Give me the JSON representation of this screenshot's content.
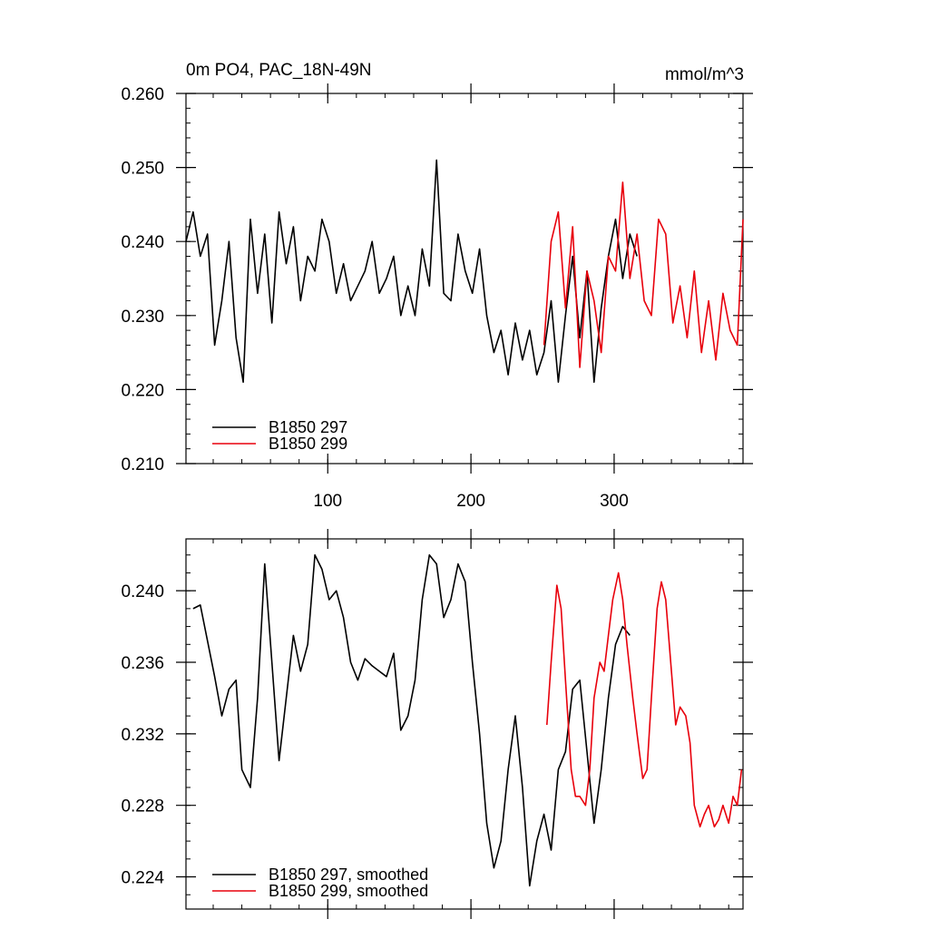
{
  "header": {
    "title": "0m PO4, PAC_18N-49N",
    "units": "mmol/m^3"
  },
  "colors": {
    "series_297": "#000000",
    "series_299": "#e8000b"
  },
  "chart_data": [
    {
      "type": "line",
      "title": "0m PO4, PAC_18N-49N",
      "units": "mmol/m^3",
      "xlim": [
        1,
        390
      ],
      "ylim": [
        0.21,
        0.26
      ],
      "xticks": [
        100,
        200,
        300
      ],
      "xtick_labels": [
        "100",
        "200",
        "300"
      ],
      "yticks": [
        0.21,
        0.22,
        0.23,
        0.24,
        0.25,
        0.26
      ],
      "ytick_labels": [
        "0.210",
        "0.220",
        "0.230",
        "0.240",
        "0.250",
        "0.260"
      ],
      "legend_position": "bottom-left",
      "series": [
        {
          "name": "B1850 297",
          "x": [
            1,
            6,
            11,
            16,
            21,
            26,
            31,
            36,
            41,
            46,
            51,
            56,
            61,
            66,
            71,
            76,
            81,
            86,
            91,
            96,
            101,
            106,
            111,
            116,
            121,
            126,
            131,
            136,
            141,
            146,
            151,
            156,
            161,
            166,
            171,
            176,
            181,
            186,
            191,
            196,
            201,
            206,
            211,
            216,
            221,
            226,
            231,
            236,
            241,
            246,
            251,
            256,
            261,
            266,
            271,
            276,
            281,
            286,
            291,
            296,
            301,
            306,
            311,
            316
          ],
          "values": [
            0.24,
            0.244,
            0.238,
            0.241,
            0.226,
            0.232,
            0.24,
            0.227,
            0.221,
            0.243,
            0.233,
            0.241,
            0.229,
            0.244,
            0.237,
            0.242,
            0.232,
            0.238,
            0.236,
            0.243,
            0.24,
            0.233,
            0.237,
            0.232,
            0.234,
            0.236,
            0.24,
            0.233,
            0.235,
            0.238,
            0.23,
            0.234,
            0.23,
            0.239,
            0.234,
            0.251,
            0.233,
            0.232,
            0.241,
            0.236,
            0.233,
            0.239,
            0.23,
            0.225,
            0.228,
            0.222,
            0.229,
            0.224,
            0.228,
            0.222,
            0.225,
            0.232,
            0.221,
            0.23,
            0.238,
            0.227,
            0.236,
            0.221,
            0.231,
            0.238,
            0.243,
            0.235,
            0.241,
            0.238
          ]
        },
        {
          "name": "B1850 299",
          "x": [
            251,
            256,
            261,
            266,
            271,
            276,
            281,
            286,
            291,
            296,
            301,
            306,
            311,
            316,
            321,
            326,
            331,
            336,
            341,
            346,
            351,
            356,
            361,
            366,
            371,
            376,
            381,
            386,
            390
          ],
          "values": [
            0.226,
            0.24,
            0.244,
            0.231,
            0.242,
            0.223,
            0.236,
            0.232,
            0.225,
            0.238,
            0.236,
            0.248,
            0.235,
            0.241,
            0.232,
            0.23,
            0.243,
            0.241,
            0.229,
            0.234,
            0.227,
            0.236,
            0.225,
            0.232,
            0.224,
            0.233,
            0.228,
            0.226,
            0.243
          ]
        }
      ]
    },
    {
      "type": "line",
      "xlim": [
        1,
        390
      ],
      "ylim": [
        0.2222,
        0.2429
      ],
      "xticks": [
        100,
        200,
        300
      ],
      "yticks": [
        0.224,
        0.228,
        0.232,
        0.236,
        0.24
      ],
      "ytick_labels": [
        "0.224",
        "0.228",
        "0.232",
        "0.236",
        "0.240"
      ],
      "legend_position": "bottom-left",
      "series": [
        {
          "name": "B1850 297, smoothed",
          "x": [
            6,
            11,
            16,
            21,
            26,
            31,
            36,
            40,
            46,
            51,
            56,
            61,
            66,
            71,
            76,
            81,
            86,
            91,
            96,
            101,
            106,
            111,
            116,
            121,
            126,
            131,
            136,
            141,
            146,
            151,
            156,
            161,
            166,
            171,
            176,
            181,
            186,
            191,
            196,
            201,
            206,
            211,
            216,
            221,
            226,
            231,
            236,
            241,
            246,
            251,
            256,
            261,
            266,
            271,
            276,
            281,
            286,
            291,
            296,
            301,
            306,
            311
          ],
          "values": [
            0.239,
            0.2392,
            0.2372,
            0.2352,
            0.233,
            0.2345,
            0.235,
            0.23,
            0.229,
            0.234,
            0.2415,
            0.236,
            0.2305,
            0.234,
            0.2375,
            0.2355,
            0.237,
            0.242,
            0.2412,
            0.2395,
            0.24,
            0.2385,
            0.236,
            0.235,
            0.2362,
            0.2358,
            0.2355,
            0.2352,
            0.2365,
            0.2322,
            0.233,
            0.235,
            0.2395,
            0.242,
            0.2415,
            0.2385,
            0.2395,
            0.2415,
            0.2405,
            0.236,
            0.232,
            0.227,
            0.2245,
            0.226,
            0.23,
            0.233,
            0.229,
            0.2235,
            0.226,
            0.2275,
            0.2255,
            0.23,
            0.231,
            0.2345,
            0.235,
            0.231,
            0.227,
            0.23,
            0.234,
            0.237,
            0.238,
            0.2375
          ]
        },
        {
          "name": "B1850 299, smoothed",
          "x": [
            253,
            256,
            260,
            263,
            266,
            270,
            273,
            276,
            280,
            283,
            286,
            290,
            293,
            296,
            299,
            303,
            306,
            309,
            313,
            316,
            320,
            323,
            326,
            330,
            333,
            336,
            340,
            343,
            346,
            350,
            353,
            356,
            360,
            363,
            366,
            370,
            373,
            376,
            380,
            383,
            386,
            389
          ],
          "values": [
            0.2325,
            0.236,
            0.2403,
            0.239,
            0.235,
            0.23,
            0.2285,
            0.2285,
            0.228,
            0.23,
            0.234,
            0.236,
            0.2355,
            0.2375,
            0.2395,
            0.241,
            0.2395,
            0.237,
            0.234,
            0.232,
            0.2295,
            0.23,
            0.234,
            0.239,
            0.2405,
            0.2395,
            0.2355,
            0.2325,
            0.2335,
            0.233,
            0.2315,
            0.228,
            0.2268,
            0.2275,
            0.228,
            0.2268,
            0.2272,
            0.228,
            0.227,
            0.2285,
            0.228,
            0.23
          ]
        }
      ]
    }
  ]
}
